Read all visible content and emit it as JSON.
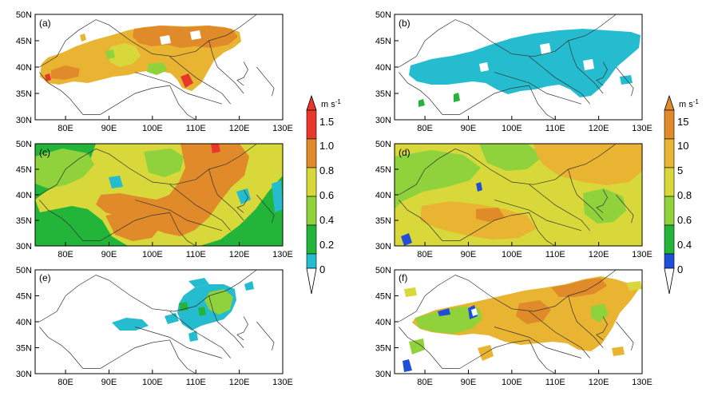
{
  "palette": {
    "cyan": "#25bcd0",
    "green_dark": "#22b53a",
    "green_light": "#8fd23c",
    "yellow": "#d8d83a",
    "orange_light": "#e8b431",
    "orange": "#e18a2a",
    "red": "#e8372b",
    "blue": "#1f4fd8",
    "white": "#ffffff"
  },
  "axes": {
    "x_ticks": [
      "80E",
      "90E",
      "100E",
      "110E",
      "120E",
      "130E"
    ],
    "y_ticks": [
      "50N",
      "45N",
      "40N",
      "35N",
      "30N"
    ]
  },
  "panels": [
    {
      "label": "(a)"
    },
    {
      "label": "(b)"
    },
    {
      "label": "(c)"
    },
    {
      "label": "(d)"
    },
    {
      "label": "(e)"
    },
    {
      "label": "(f)"
    }
  ],
  "colorbar_left": {
    "unit": "m s",
    "unit_exp": "-1",
    "labels": [
      "1.5",
      "1.0",
      "0.8",
      "0.6",
      "0.4",
      "0.2",
      "0"
    ]
  },
  "colorbar_right": {
    "unit": "m s",
    "unit_exp": "-1",
    "labels": [
      "15",
      "10",
      "5",
      "0.8",
      "0.6",
      "0.4",
      "0"
    ]
  }
}
